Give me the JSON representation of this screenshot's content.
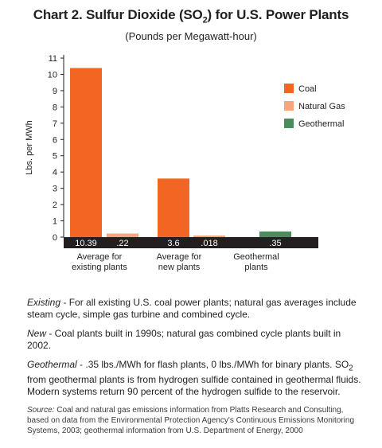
{
  "title": "Chart 2. Sulfur Dioxide (SO2) for U.S. Power Plants",
  "title_parts": {
    "before": "Chart 2. Sulfur Dioxide (SO",
    "sub": "2",
    "after": ") for U.S. Power Plants"
  },
  "subtitle": "(Pounds per Megawatt-hour)",
  "chart_data": {
    "type": "bar",
    "title": "Chart 2. Sulfur Dioxide (SO2) for U.S. Power Plants",
    "subtitle": "(Pounds per Megawatt-hour)",
    "ylabel": "Lbs. per MWh",
    "xlabel": "",
    "ylim": [
      0,
      11
    ],
    "yticks": [
      0,
      1,
      2,
      3,
      4,
      5,
      6,
      7,
      8,
      9,
      10,
      11
    ],
    "grid": false,
    "legend_position": "right",
    "categories": [
      "Average for existing plants",
      "Average for new plants",
      "Geothermal plants"
    ],
    "category_lines": [
      [
        "Average for",
        "existing plants"
      ],
      [
        "Average for",
        "new plants"
      ],
      [
        "Geothermal",
        "plants"
      ]
    ],
    "series": [
      {
        "name": "Coal",
        "color": "#f26522",
        "values": [
          10.39,
          3.6,
          null
        ],
        "labels": [
          "10.39",
          "3.6",
          null
        ]
      },
      {
        "name": "Natural Gas",
        "color": "#f9a57c",
        "values": [
          0.22,
          0.018,
          null
        ],
        "labels": [
          ".22",
          ".018",
          null
        ]
      },
      {
        "name": "Geothermal",
        "color": "#4c8b5d",
        "values": [
          null,
          null,
          0.35
        ],
        "labels": [
          null,
          null,
          ".35"
        ]
      }
    ],
    "value_strip_color": "#231f20"
  },
  "notes": {
    "existing_term": "Existing",
    "existing_text": " - For all existing U.S. coal power plants; natural gas averages include steam cycle, simple gas turbine and combined cycle.",
    "new_term": "New",
    "new_text": " - Coal plants built in 1990s; natural gas combined cycle plants built in 2002.",
    "geo_term": "Geothermal",
    "geo_text_1": " - .35 lbs./MWh for flash plants, 0 lbs./MWh for binary plants. SO",
    "geo_sub": "2",
    "geo_text_2": " from geothermal plants is from hydrogen sulfide contained in geothermal fluids. Modern systems return 90 percent of the hydrogen sulfide to the reservoir.",
    "source_term": "Source:",
    "source_text": " Coal and natural gas emissions information from Platts Research and Consulting, based on data from the Environmental Protection Agency's Continuous Emissions Monitoring Systems, 2003; geothermal information from U.S. Department of Energy, 2000"
  }
}
